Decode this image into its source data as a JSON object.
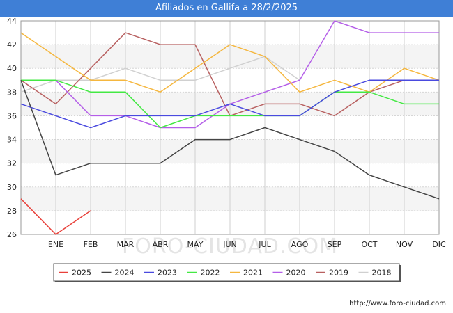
{
  "chart_data": {
    "type": "line",
    "title": "Afiliados en Gallifa a 28/2/2025",
    "categories": [
      "",
      "ENE",
      "FEB",
      "MAR",
      "ABR",
      "MAY",
      "JUN",
      "JUL",
      "AGO",
      "SEP",
      "OCT",
      "NOV",
      "DIC"
    ],
    "ylim": [
      26,
      44
    ],
    "yticks": [
      26,
      28,
      30,
      32,
      34,
      36,
      38,
      40,
      42,
      44
    ],
    "grid": true,
    "legend_position": "bottom",
    "series": [
      {
        "name": "2025",
        "color": "#e8403a",
        "values": [
          29,
          26,
          28,
          null,
          null,
          null,
          null,
          null,
          null,
          null,
          null,
          null,
          null
        ]
      },
      {
        "name": "2024",
        "color": "#444444",
        "values": [
          39,
          31,
          32,
          32,
          32,
          34,
          34,
          35,
          34,
          33,
          31,
          30,
          29
        ]
      },
      {
        "name": "2023",
        "color": "#4a4adf",
        "values": [
          37,
          36,
          35,
          36,
          36,
          36,
          37,
          36,
          36,
          38,
          39,
          39,
          39
        ]
      },
      {
        "name": "2022",
        "color": "#44e844",
        "values": [
          39,
          39,
          38,
          38,
          35,
          36,
          36,
          36,
          36,
          38,
          38,
          37,
          37
        ]
      },
      {
        "name": "2021",
        "color": "#f5b73f",
        "values": [
          43,
          41,
          39,
          39,
          38,
          40,
          42,
          41,
          38,
          39,
          38,
          40,
          39
        ]
      },
      {
        "name": "2020",
        "color": "#b45ee8",
        "values": [
          39,
          39,
          36,
          36,
          35,
          35,
          37,
          38,
          39,
          44,
          43,
          43,
          43
        ]
      },
      {
        "name": "2019",
        "color": "#b86060",
        "values": [
          39,
          37,
          40,
          43,
          42,
          42,
          36,
          37,
          37,
          36,
          38,
          39,
          39
        ]
      },
      {
        "name": "2018",
        "color": "#d0d0d0",
        "values": [
          38,
          39,
          39,
          40,
          39,
          39,
          40,
          41,
          39,
          null,
          null,
          null,
          null
        ]
      }
    ]
  },
  "watermark": "FORO-CIUDAD.COM",
  "source": "http://www.foro-ciudad.com"
}
